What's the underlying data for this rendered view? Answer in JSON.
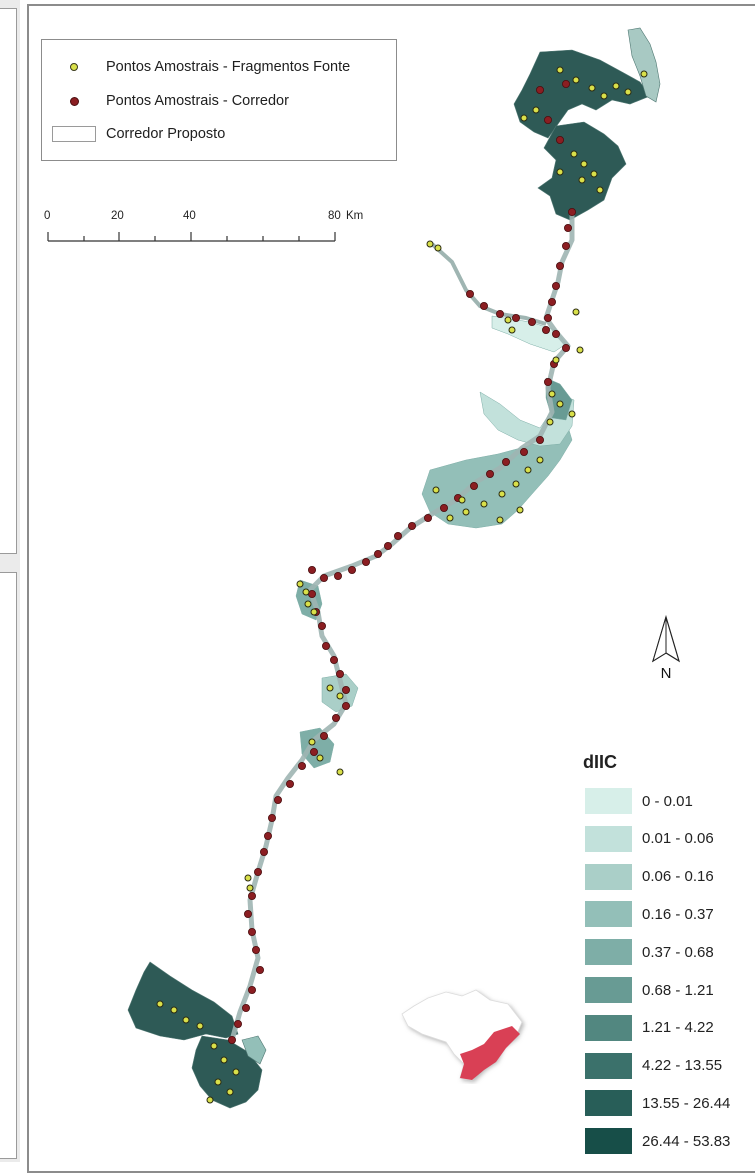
{
  "legend": {
    "items": [
      {
        "label": "Pontos Amostrais - Fragmentos Fonte",
        "symbol": "yellow-dot-icon"
      },
      {
        "label": "Pontos Amostrais - Corredor",
        "symbol": "red-dot-icon"
      },
      {
        "label": "Corredor Proposto",
        "symbol": "white-rectangle-icon"
      }
    ]
  },
  "scalebar": {
    "ticks": [
      "0",
      "20",
      "40",
      "80"
    ],
    "unit": "Km"
  },
  "north_arrow": {
    "label": "N"
  },
  "classification": {
    "title": "dIIC",
    "classes": [
      {
        "label": "0 - 0.01",
        "color": "#d7efe9"
      },
      {
        "label": "0.01 - 0.06",
        "color": "#c2e1db"
      },
      {
        "label": "0.06 - 0.16",
        "color": "#aacfc8"
      },
      {
        "label": "0.16 - 0.37",
        "color": "#93bfb8"
      },
      {
        "label": "0.37 - 0.68",
        "color": "#7eaea7"
      },
      {
        "label": "0.68 - 1.21",
        "color": "#689b94"
      },
      {
        "label": "1.21 - 4.22",
        "color": "#528780"
      },
      {
        "label": "4.22 - 13.55",
        "color": "#3b716b"
      },
      {
        "label": "13.55 - 26.44",
        "color": "#285e58"
      },
      {
        "label": "26.44 - 53.83",
        "color": "#174e48"
      }
    ]
  },
  "colors": {
    "fonte_point": "#d9e04a",
    "corredor_point": "#8b1e22",
    "fragment_dark": "#2e5a56",
    "corridor_line": "#9fb5b2",
    "inset_country": "#ffffff",
    "inset_highlight": "#d94055"
  }
}
